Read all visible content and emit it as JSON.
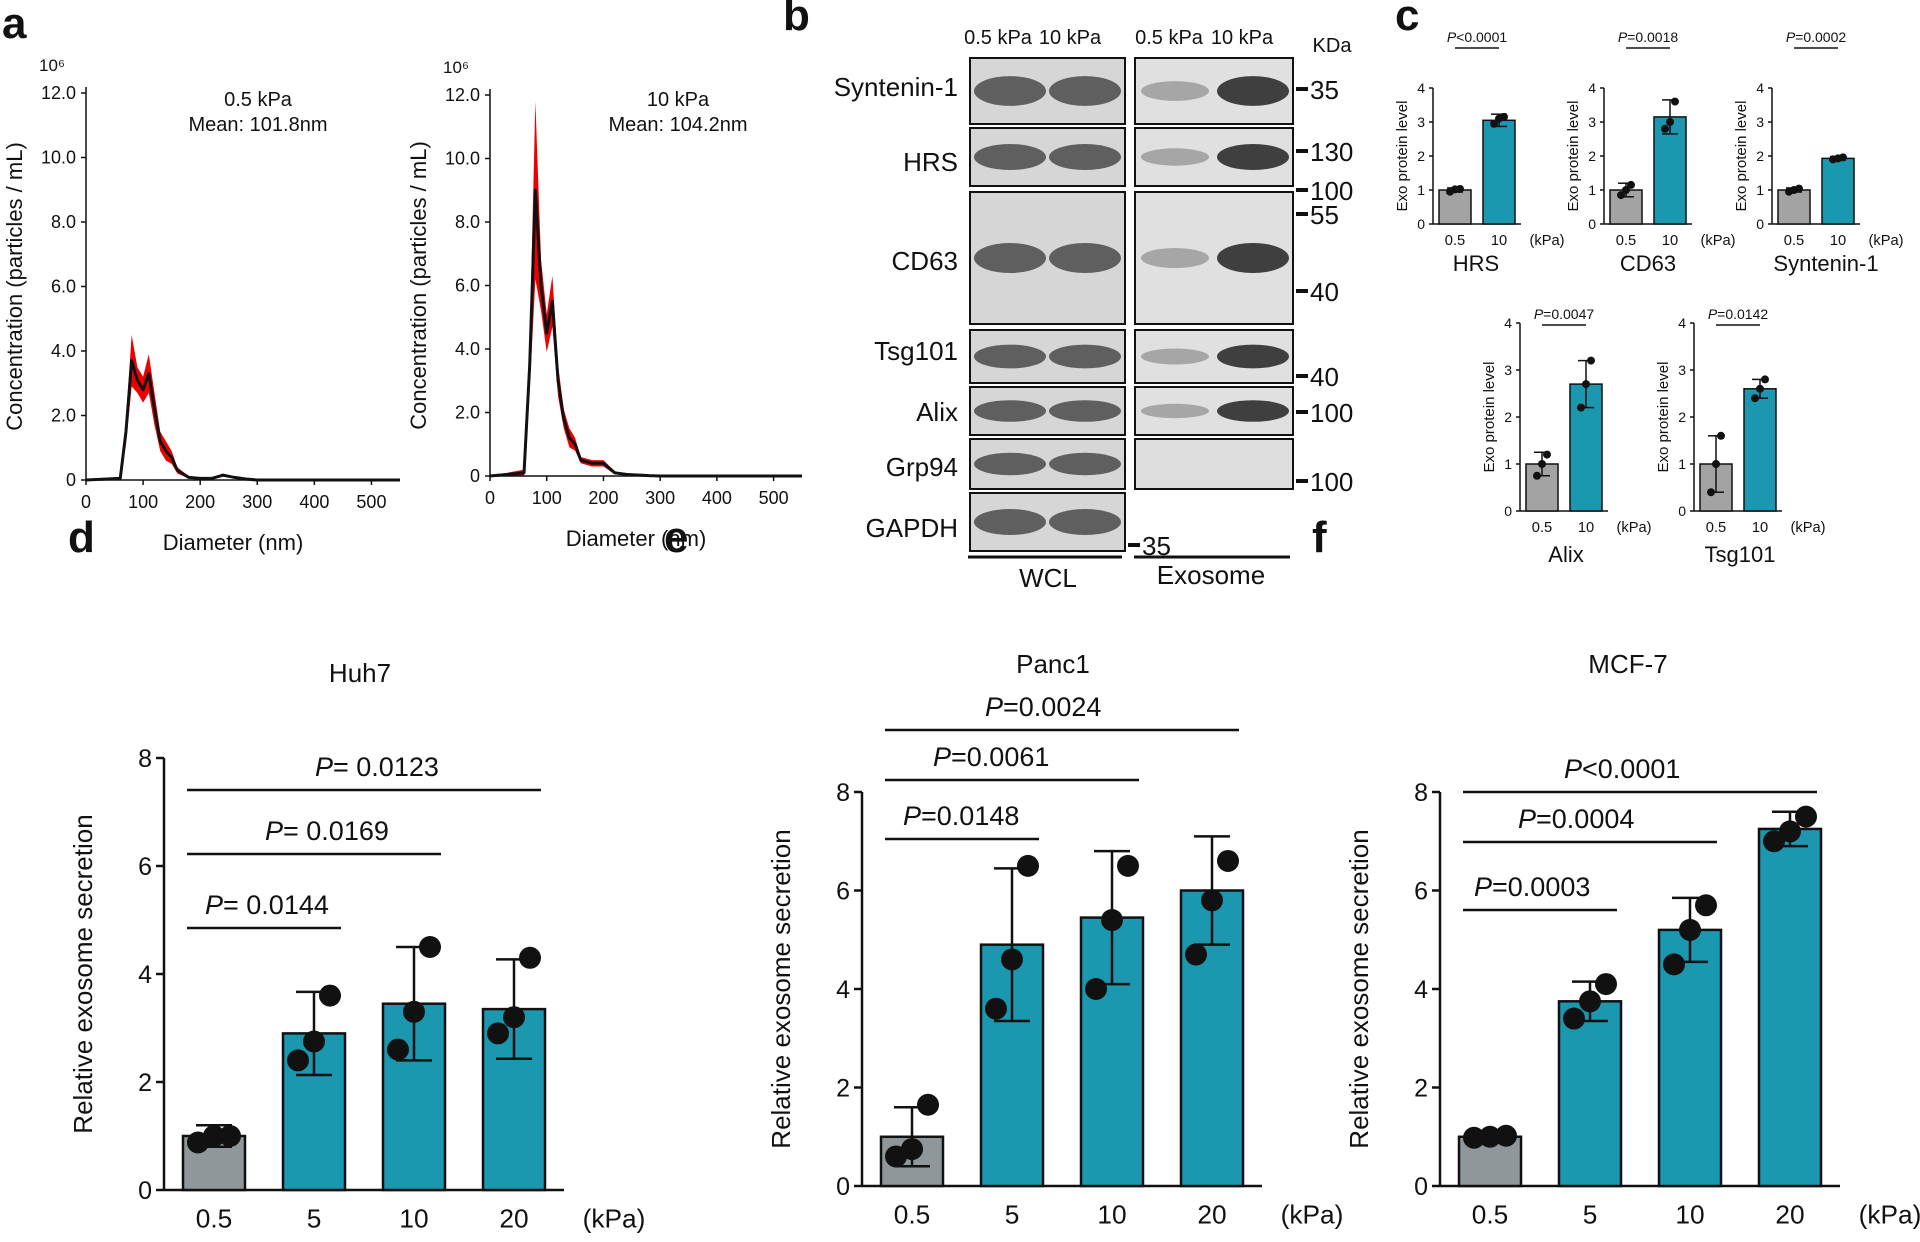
{
  "panel_letters": [
    "a",
    "b",
    "c",
    "d",
    "e",
    "f"
  ],
  "chart_data": [
    {
      "panel": "a",
      "type": "line",
      "annotation": [
        "0.5 kPa",
        "Mean: 101.8nm"
      ],
      "xlabel": "Diameter (nm)",
      "ylabel": "Concentration (particles / mL)",
      "yscale_label": "10⁶",
      "xlim": [
        0,
        550
      ],
      "ylim": [
        0,
        12
      ],
      "xticks": [
        "0",
        "100",
        "200",
        "300",
        "400",
        "500"
      ],
      "yticks": [
        "0",
        "2.0",
        "4.0",
        "6.0",
        "8.0",
        "10.0",
        "12.0"
      ],
      "colors": {
        "mean": "#111111",
        "error": "#ee0000"
      },
      "x": [
        0,
        60,
        70,
        80,
        90,
        100,
        110,
        120,
        130,
        140,
        150,
        160,
        180,
        200,
        220,
        240,
        260,
        280,
        300,
        550
      ],
      "y": [
        0,
        0.05,
        1.5,
        3.7,
        3.1,
        2.8,
        3.3,
        2.2,
        1.2,
        0.9,
        0.7,
        0.3,
        0.08,
        0.05,
        0.05,
        0.15,
        0.08,
        0.03,
        0,
        0
      ],
      "y_err": [
        0,
        0.05,
        0.4,
        0.8,
        0.4,
        0.4,
        0.6,
        0.5,
        0.3,
        0.3,
        0.2,
        0.1,
        0.03,
        0.02,
        0.02,
        0.05,
        0.03,
        0.01,
        0,
        0
      ]
    },
    {
      "panel": "a",
      "type": "line",
      "annotation": [
        "10 kPa",
        "Mean: 104.2nm"
      ],
      "xlabel": "Diameter (nm)",
      "ylabel": "Concentration (particles / mL)",
      "yscale_label": "10⁶",
      "xlim": [
        0,
        550
      ],
      "ylim": [
        0,
        12
      ],
      "xticks": [
        "0",
        "100",
        "200",
        "300",
        "400",
        "500"
      ],
      "yticks": [
        "0",
        "2.0",
        "4.0",
        "6.0",
        "8.0",
        "10.0",
        "12.0"
      ],
      "colors": {
        "mean": "#111111",
        "error": "#ee0000"
      },
      "x": [
        0,
        60,
        70,
        80,
        90,
        100,
        110,
        120,
        130,
        140,
        150,
        160,
        180,
        200,
        220,
        240,
        260,
        280,
        300,
        550
      ],
      "y": [
        0,
        0.1,
        3.5,
        9.0,
        6.0,
        4.5,
        5.5,
        3.0,
        1.8,
        1.2,
        1.0,
        0.5,
        0.4,
        0.4,
        0.1,
        0.05,
        0.03,
        0.01,
        0,
        0
      ],
      "y_err": [
        0,
        0.1,
        0.8,
        2.8,
        0.8,
        0.6,
        0.8,
        0.5,
        0.3,
        0.3,
        0.2,
        0.1,
        0.1,
        0.1,
        0.05,
        0.02,
        0.01,
        0,
        0,
        0
      ]
    },
    {
      "panel": "b",
      "type": "table",
      "conditions": [
        "0.5 kPa",
        "10 kPa",
        "0.5 kPa",
        "10 kPa"
      ],
      "unit_header": "KDa",
      "proteins": [
        "Syntenin-1",
        "HRS",
        "CD63",
        "Tsg101",
        "Alix",
        "Grp94",
        "GAPDH"
      ],
      "markers": [
        "35",
        "130",
        "100",
        "55",
        "40",
        "40",
        "100",
        "100",
        "35"
      ],
      "groups": [
        "WCL",
        "Exosome"
      ]
    },
    {
      "panel": "c",
      "type": "bar",
      "title": "HRS",
      "ylabel": "Exo protein level",
      "categories": [
        "0.5",
        "10"
      ],
      "unit": "(kPa)",
      "ylim": [
        0,
        4
      ],
      "yticks": [
        "0",
        "1",
        "2",
        "3",
        "4"
      ],
      "values": [
        1.0,
        3.05
      ],
      "errors": [
        0.06,
        0.18
      ],
      "points": [
        [
          0.95,
          1.02,
          1.03
        ],
        [
          2.95,
          3.1,
          3.15
        ]
      ],
      "pvalue": {
        "italic": "P",
        "rest": "<0.0001"
      },
      "colors": [
        "#a3a3a3",
        "#1b97b0"
      ]
    },
    {
      "panel": "c",
      "type": "bar",
      "title": "CD63",
      "ylabel": "Exo protein level",
      "categories": [
        "0.5",
        "10"
      ],
      "unit": "(kPa)",
      "ylim": [
        0,
        4
      ],
      "yticks": [
        "0",
        "1",
        "2",
        "3",
        "4"
      ],
      "values": [
        1.0,
        3.15
      ],
      "errors": [
        0.2,
        0.5
      ],
      "points": [
        [
          0.85,
          1.0,
          1.15
        ],
        [
          2.8,
          3.0,
          3.6
        ]
      ],
      "pvalue": {
        "italic": "P",
        "rest": "=0.0018"
      },
      "colors": [
        "#a3a3a3",
        "#1b97b0"
      ]
    },
    {
      "panel": "c",
      "type": "bar",
      "title": "Syntenin-1",
      "ylabel": "Exo protein level",
      "categories": [
        "0.5",
        "10"
      ],
      "unit": "(kPa)",
      "ylim": [
        0,
        4
      ],
      "yticks": [
        "0",
        "1",
        "2",
        "3",
        "4"
      ],
      "values": [
        1.0,
        1.93
      ],
      "errors": [
        0.06,
        0.05
      ],
      "points": [
        [
          0.95,
          1.0,
          1.04
        ],
        [
          1.9,
          1.93,
          1.96
        ]
      ],
      "pvalue": {
        "italic": "P",
        "rest": "=0.0002"
      },
      "colors": [
        "#a3a3a3",
        "#1b97b0"
      ]
    },
    {
      "panel": "c",
      "type": "bar",
      "title": "Alix",
      "ylabel": "Exo protein level",
      "categories": [
        "0.5",
        "10"
      ],
      "unit": "(kPa)",
      "ylim": [
        0,
        4
      ],
      "yticks": [
        "0",
        "1",
        "2",
        "3",
        "4"
      ],
      "values": [
        1.0,
        2.7
      ],
      "errors": [
        0.25,
        0.5
      ],
      "points": [
        [
          0.75,
          1.0,
          1.2
        ],
        [
          2.2,
          2.7,
          3.2
        ]
      ],
      "pvalue": {
        "italic": "P",
        "rest": "=0.0047"
      },
      "colors": [
        "#a3a3a3",
        "#1b97b0"
      ]
    },
    {
      "panel": "c",
      "type": "bar",
      "title": "Tsg101",
      "ylabel": "Exo protein level",
      "categories": [
        "0.5",
        "10"
      ],
      "unit": "(kPa)",
      "ylim": [
        0,
        4
      ],
      "yticks": [
        "0",
        "1",
        "2",
        "3",
        "4"
      ],
      "values": [
        1.0,
        2.6
      ],
      "errors": [
        0.6,
        0.2
      ],
      "points": [
        [
          0.4,
          1.0,
          1.6
        ],
        [
          2.4,
          2.6,
          2.8
        ]
      ],
      "pvalue": {
        "italic": "P",
        "rest": "=0.0142"
      },
      "colors": [
        "#a3a3a3",
        "#1b97b0"
      ]
    },
    {
      "panel": "d",
      "type": "bar",
      "title": "Huh7",
      "ylabel": "Relative exosome secretion",
      "categories": [
        "0.5",
        "5",
        "10",
        "20"
      ],
      "unit": "(kPa)",
      "ylim": [
        0,
        8
      ],
      "yticks": [
        "0",
        "2",
        "4",
        "6",
        "8"
      ],
      "values": [
        1.0,
        2.9,
        3.45,
        3.35
      ],
      "errors": [
        0.2,
        0.77,
        1.05,
        0.92
      ],
      "points": [
        [
          0.88,
          1.0,
          1.0
        ],
        [
          2.4,
          2.75,
          3.6
        ],
        [
          2.6,
          3.3,
          4.5
        ],
        [
          2.9,
          3.2,
          4.3
        ]
      ],
      "comparisons": [
        {
          "from": 0,
          "to": 1,
          "italic": "P",
          "rest": "= 0.0144"
        },
        {
          "from": 0,
          "to": 2,
          "italic": "P",
          "rest": "= 0.0169"
        },
        {
          "from": 0,
          "to": 3,
          "italic": "P",
          "rest": "= 0.0123"
        }
      ],
      "colors": [
        "#8f979b",
        "#1b97b0"
      ]
    },
    {
      "panel": "e",
      "type": "bar",
      "title": "Panc1",
      "ylabel": "Relative exosome secretion",
      "categories": [
        "0.5",
        "5",
        "10",
        "20"
      ],
      "unit": "(kPa)",
      "ylim": [
        0,
        8
      ],
      "yticks": [
        "0",
        "2",
        "4",
        "6",
        "8"
      ],
      "values": [
        1.0,
        4.9,
        5.45,
        6.0
      ],
      "errors": [
        0.6,
        1.55,
        1.35,
        1.1
      ],
      "points": [
        [
          0.6,
          0.75,
          1.65
        ],
        [
          3.6,
          4.6,
          6.5
        ],
        [
          4.0,
          5.4,
          6.5
        ],
        [
          4.7,
          5.8,
          6.6
        ]
      ],
      "comparisons": [
        {
          "from": 0,
          "to": 1,
          "italic": "P",
          "rest": "=0.0148"
        },
        {
          "from": 0,
          "to": 2,
          "italic": "P",
          "rest": "=0.0061"
        },
        {
          "from": 0,
          "to": 3,
          "italic": "P",
          "rest": "=0.0024"
        }
      ],
      "colors": [
        "#8f979b",
        "#1b97b0"
      ]
    },
    {
      "panel": "f",
      "type": "bar",
      "title": "MCF-7",
      "ylabel": "Relative exosome secretion",
      "categories": [
        "0.5",
        "5",
        "10",
        "20"
      ],
      "unit": "(kPa)",
      "ylim": [
        0,
        8
      ],
      "yticks": [
        "0",
        "2",
        "4",
        "6",
        "8"
      ],
      "values": [
        1.0,
        3.75,
        5.2,
        7.25
      ],
      "errors": [
        0.02,
        0.4,
        0.65,
        0.35
      ],
      "points": [
        [
          0.98,
          1.0,
          1.02
        ],
        [
          3.4,
          3.75,
          4.1
        ],
        [
          4.5,
          5.2,
          5.7
        ],
        [
          7.0,
          7.2,
          7.5
        ]
      ],
      "comparisons": [
        {
          "from": 0,
          "to": 1,
          "italic": "P",
          "rest": "=0.0003"
        },
        {
          "from": 0,
          "to": 2,
          "italic": "P",
          "rest": "=0.0004"
        },
        {
          "from": 0,
          "to": 3,
          "italic": "P",
          "rest": "<0.0001"
        }
      ],
      "colors": [
        "#8f979b",
        "#1b97b0"
      ]
    }
  ]
}
